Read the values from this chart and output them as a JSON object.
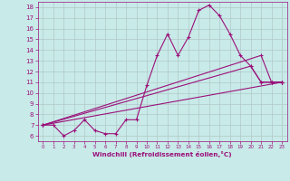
{
  "bg_color": "#c8eae8",
  "line_color": "#9b107a",
  "grid_color": "#b0c8c8",
  "xlabel": "Windchill (Refroidissement éolien,°C)",
  "xlabel_color": "#9b107a",
  "ylim": [
    5.5,
    18.5
  ],
  "xlim": [
    -0.5,
    23.5
  ],
  "yticks": [
    6,
    7,
    8,
    9,
    10,
    11,
    12,
    13,
    14,
    15,
    16,
    17,
    18
  ],
  "xticks": [
    0,
    1,
    2,
    3,
    4,
    5,
    6,
    7,
    8,
    9,
    10,
    11,
    12,
    13,
    14,
    15,
    16,
    17,
    18,
    19,
    20,
    21,
    22,
    23
  ],
  "series1": {
    "x": [
      0,
      1,
      2,
      3,
      4,
      5,
      6,
      7,
      8,
      9,
      10,
      11,
      12,
      13,
      14,
      15,
      16,
      17,
      18,
      19,
      20,
      21,
      22,
      23
    ],
    "y": [
      7,
      7,
      6,
      6.5,
      7.5,
      6.5,
      6.2,
      6.2,
      7.5,
      7.5,
      10.7,
      13.5,
      15.5,
      13.5,
      15.2,
      17.7,
      18.2,
      17.2,
      15.5,
      13.5,
      12.5,
      11.0,
      11.0,
      11.0
    ]
  },
  "series2": {
    "x": [
      0,
      21,
      22,
      23
    ],
    "y": [
      7,
      13.5,
      11.0,
      11.0
    ]
  },
  "series3": {
    "x": [
      0,
      20,
      21,
      22,
      23
    ],
    "y": [
      7,
      12.5,
      11.0,
      11.0,
      11.0
    ]
  },
  "series4": {
    "x": [
      0,
      23
    ],
    "y": [
      7,
      11.0
    ]
  }
}
